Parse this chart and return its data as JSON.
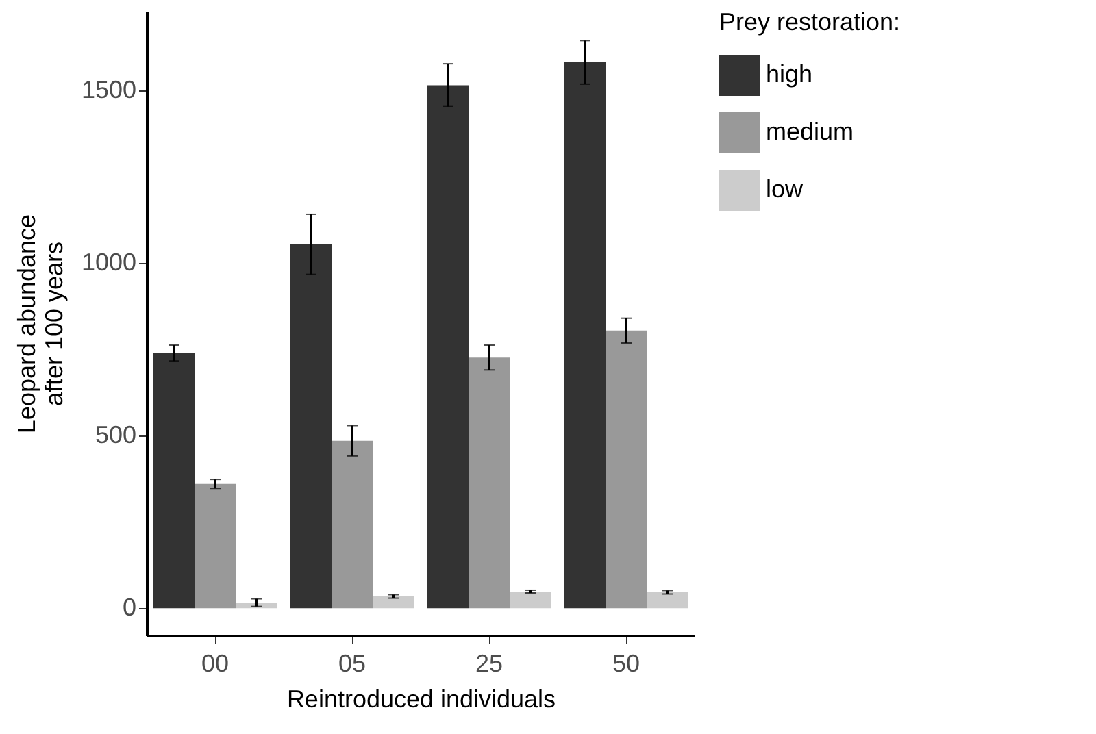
{
  "chart_data": {
    "type": "bar",
    "xlabel": "Reintroduced individuals",
    "ylabel": "Leopard abundance\nafter 100 years",
    "legend_title": "Prey restoration:",
    "categories": [
      "00",
      "05",
      "25",
      "50"
    ],
    "series": [
      {
        "name": "high",
        "color": "#333333",
        "values": [
          739,
          1054,
          1515,
          1581
        ],
        "errors": [
          23,
          87,
          62,
          63
        ]
      },
      {
        "name": "medium",
        "color": "#999999",
        "values": [
          360,
          485,
          726,
          804
        ],
        "errors": [
          13,
          44,
          36,
          36
        ]
      },
      {
        "name": "low",
        "color": "#cccccc",
        "values": [
          16,
          34,
          48,
          46
        ],
        "errors": [
          11,
          5,
          4,
          5
        ]
      }
    ],
    "ylim": [
      -79,
      1730
    ],
    "yticks": [
      0,
      500,
      1000,
      1500
    ],
    "grid": false,
    "legend": "right"
  }
}
